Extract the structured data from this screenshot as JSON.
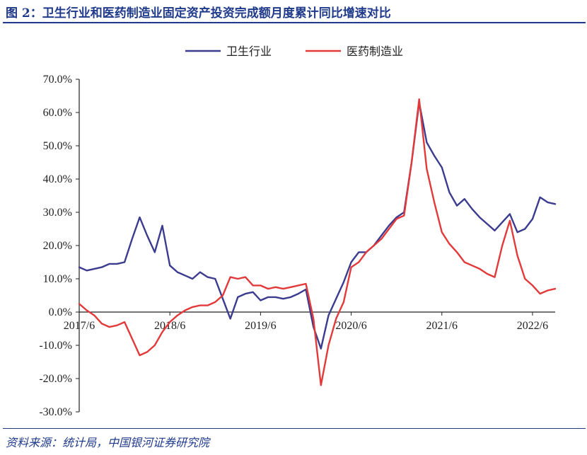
{
  "header": {
    "title": "图 2：卫生行业和医药制造业固定资产投资完成额月度累计同比增速对比"
  },
  "footer": {
    "source": "资料来源：统计局，中国银河证券研究院"
  },
  "chart_data": {
    "type": "line",
    "title": "图 2：卫生行业和医药制造业固定资产投资完成额月度累计同比增速对比",
    "ylabel": "",
    "xlabel": "",
    "ylim": [
      -30,
      70
    ],
    "yticks": [
      -30,
      -20,
      -10,
      0,
      10,
      20,
      30,
      40,
      50,
      60,
      70
    ],
    "ytick_labels": [
      "-30.0%",
      "-20.0%",
      "-10.0%",
      "0.0%",
      "10.0%",
      "20.0%",
      "30.0%",
      "40.0%",
      "50.0%",
      "60.0%",
      "70.0%"
    ],
    "xtick_labels": [
      "2017/6",
      "2018/6",
      "2019/6",
      "2020/6",
      "2021/6",
      "2022/6"
    ],
    "x_start": "2017/6",
    "x_end": "2022/8",
    "legend": "top-center",
    "series": [
      {
        "name": "卫生行业",
        "color": "#3b3b8f",
        "values": [
          13.5,
          12.5,
          13,
          13.5,
          14.5,
          14.5,
          15,
          22,
          28.5,
          23,
          18,
          26,
          14,
          12,
          11,
          10,
          12,
          10.5,
          10,
          4,
          -2,
          4.5,
          5.5,
          6,
          3.5,
          4.5,
          4.5,
          4,
          4.5,
          5.5,
          6.8,
          -4.5,
          -11,
          -1,
          4,
          9,
          15,
          18,
          18,
          20,
          23,
          26,
          28.5,
          30,
          45,
          63,
          51,
          47,
          43.5,
          36,
          32,
          34,
          31,
          28.5,
          26.5,
          24.5,
          27,
          29.5,
          24,
          25,
          28,
          34.5,
          33,
          32.5
        ]
      },
      {
        "name": "医药制造业",
        "color": "#e23a3a",
        "values": [
          2.5,
          0.5,
          -1,
          -3.5,
          -4.5,
          -4,
          -3,
          -8,
          -13,
          -12,
          -10,
          -6,
          -3,
          -1,
          0.5,
          1.5,
          2,
          2,
          3,
          5,
          10.5,
          10,
          10.5,
          8,
          8,
          7,
          7.5,
          7,
          7.5,
          8,
          8.5,
          -2,
          -22,
          -10,
          -2,
          3,
          13.5,
          15,
          18,
          20,
          22,
          25,
          28,
          29,
          45,
          64,
          43,
          33,
          24,
          20.5,
          18,
          15,
          14,
          13,
          11.5,
          10.5,
          20,
          27.5,
          17,
          10,
          8,
          5.5,
          6.5,
          7
        ]
      }
    ]
  }
}
